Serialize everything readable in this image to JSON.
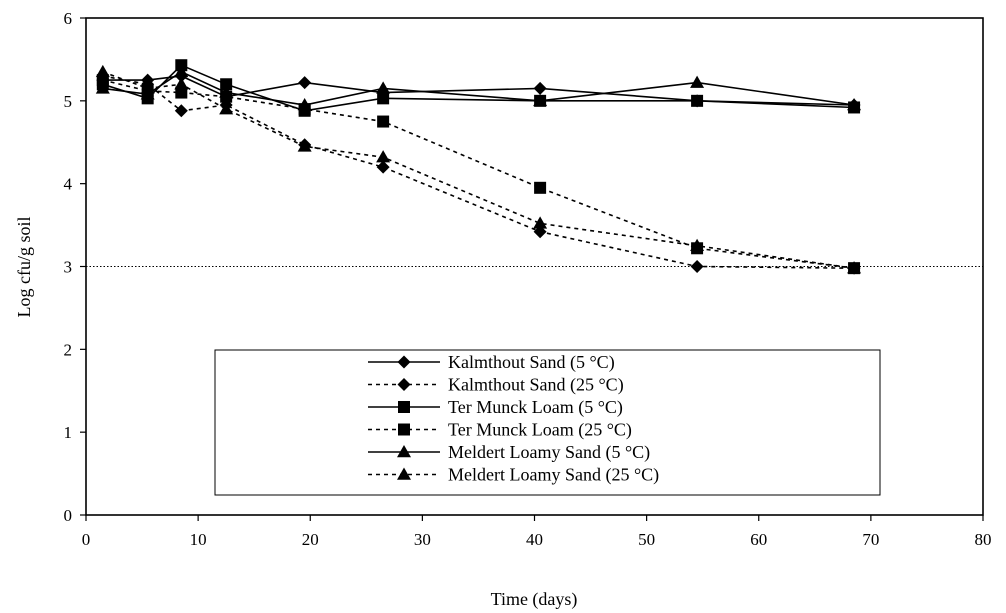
{
  "chart_data": {
    "type": "line",
    "title": "",
    "xlabel": "Time (days)",
    "ylabel": "Log cfu/g soil",
    "xlim": [
      0,
      80
    ],
    "ylim": [
      0,
      6
    ],
    "xticks": [
      0,
      10,
      20,
      30,
      40,
      50,
      60,
      70,
      80
    ],
    "yticks": [
      0,
      1,
      2,
      3,
      4,
      5,
      6
    ],
    "grid": false,
    "reference_line": {
      "y": 3,
      "style": "dotted"
    },
    "legend_position": "bottom-center",
    "series": [
      {
        "name": "Kalmthout Sand (5 °C)",
        "marker": "diamond",
        "line": "solid",
        "x": [
          1.5,
          5.5,
          8.5,
          12.5,
          19.5,
          26.5,
          40.5,
          54.5,
          68.5
        ],
        "y": [
          5.25,
          5.25,
          5.3,
          5.05,
          5.22,
          5.1,
          5.15,
          5.0,
          4.95
        ]
      },
      {
        "name": "Kalmthout Sand (25 °C)",
        "marker": "diamond",
        "line": "dashed",
        "x": [
          1.5,
          5.5,
          8.5,
          12.5,
          19.5,
          26.5,
          40.5,
          54.5,
          68.5
        ],
        "y": [
          5.3,
          5.2,
          4.88,
          4.95,
          4.47,
          4.2,
          3.42,
          3.0,
          2.98
        ]
      },
      {
        "name": "Ter Munck Loam (5 °C)",
        "marker": "square",
        "line": "solid",
        "x": [
          1.5,
          5.5,
          8.5,
          12.5,
          19.5,
          26.5,
          40.5,
          54.5,
          68.5
        ],
        "y": [
          5.2,
          5.03,
          5.43,
          5.2,
          4.88,
          5.03,
          5.0,
          5.0,
          4.92
        ]
      },
      {
        "name": "Ter Munck Loam (25 °C)",
        "marker": "square",
        "line": "dashed",
        "x": [
          1.5,
          5.5,
          8.5,
          12.5,
          19.5,
          26.5,
          40.5,
          54.5,
          68.5
        ],
        "y": [
          5.25,
          5.12,
          5.1,
          5.05,
          4.9,
          4.75,
          3.95,
          3.22,
          2.98
        ]
      },
      {
        "name": "Meldert Loamy Sand (5 °C)",
        "marker": "triangle",
        "line": "solid",
        "x": [
          1.5,
          5.5,
          8.5,
          12.5,
          19.5,
          26.5,
          40.5,
          54.5,
          68.5
        ],
        "y": [
          5.15,
          5.08,
          5.35,
          5.1,
          4.95,
          5.15,
          5.0,
          5.22,
          4.95
        ]
      },
      {
        "name": "Meldert Loamy Sand (25 °C)",
        "marker": "triangle",
        "line": "dashed",
        "x": [
          1.5,
          5.5,
          8.5,
          12.5,
          19.5,
          26.5,
          40.5,
          54.5,
          68.5
        ],
        "y": [
          5.35,
          5.15,
          5.2,
          4.9,
          4.45,
          4.32,
          3.52,
          3.25,
          2.98
        ]
      }
    ]
  }
}
